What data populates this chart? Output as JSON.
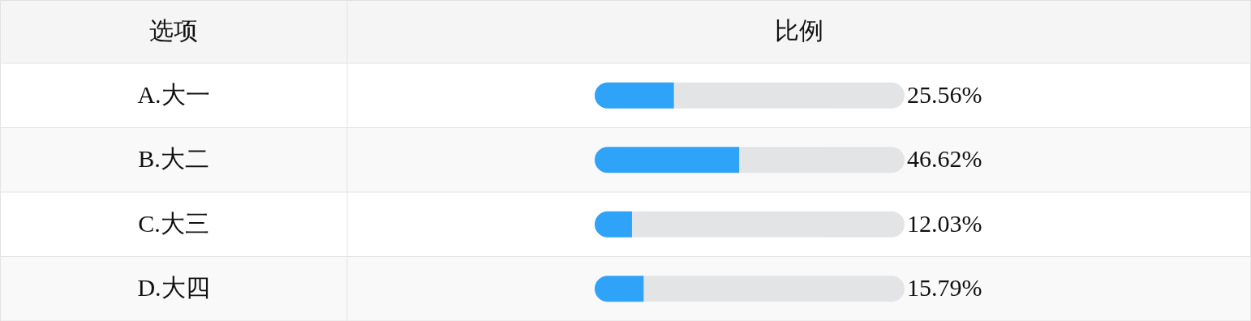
{
  "chart_data": {
    "type": "bar",
    "orientation": "horizontal",
    "ylabel": "选项",
    "xlabel": "比例",
    "categories": [
      "A.大一",
      "B.大二",
      "C.大三",
      "D.大四"
    ],
    "values": [
      25.56,
      46.62,
      12.03,
      15.79
    ],
    "value_labels": [
      "25.56%",
      "46.62%",
      "12.03%",
      "15.79%"
    ],
    "color": "#2ea3f7",
    "xlim": [
      0,
      100
    ]
  }
}
